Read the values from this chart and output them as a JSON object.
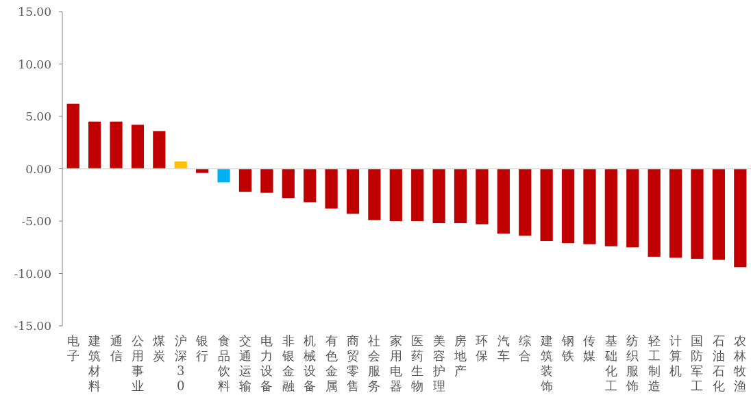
{
  "chart_data": {
    "type": "bar",
    "categories": [
      "电子",
      "建筑材料",
      "通信",
      "公用事业",
      "煤炭",
      "沪深300",
      "银行",
      "食品饮料",
      "交通运输",
      "电力设备",
      "非银金融",
      "机械设备",
      "有色金属",
      "商贸零售",
      "社会服务",
      "家用电器",
      "医药生物",
      "美容护理",
      "房地产",
      "环保",
      "汽车",
      "综合",
      "建筑装饰",
      "钢铁",
      "传媒",
      "基础化工",
      "纺织服饰",
      "轻工制造",
      "计算机",
      "国防军工",
      "石油石化",
      "农林牧渔"
    ],
    "values": [
      6.2,
      4.5,
      4.5,
      4.2,
      3.6,
      0.7,
      -0.4,
      -1.3,
      -2.2,
      -2.3,
      -2.8,
      -3.2,
      -3.8,
      -4.3,
      -4.9,
      -5.0,
      -5.0,
      -5.2,
      -5.2,
      -5.3,
      -6.2,
      -6.4,
      -6.9,
      -7.1,
      -7.2,
      -7.4,
      -7.5,
      -8.4,
      -8.5,
      -8.6,
      -8.7,
      -9.4
    ],
    "colors": [
      "#c00000",
      "#c00000",
      "#c00000",
      "#c00000",
      "#c00000",
      "#ffc000",
      "#c00000",
      "#00b0f0",
      "#c00000",
      "#c00000",
      "#c00000",
      "#c00000",
      "#c00000",
      "#c00000",
      "#c00000",
      "#c00000",
      "#c00000",
      "#c00000",
      "#c00000",
      "#c00000",
      "#c00000",
      "#c00000",
      "#c00000",
      "#c00000",
      "#c00000",
      "#c00000",
      "#c00000",
      "#c00000",
      "#c00000",
      "#c00000",
      "#c00000",
      "#c00000"
    ],
    "ylim": [
      -15,
      15
    ],
    "yticks": [
      {
        "value": -15,
        "label": "-15.00"
      },
      {
        "value": -10,
        "label": "-10.00"
      },
      {
        "value": -5,
        "label": "-5.00"
      },
      {
        "value": 0,
        "label": "0.00"
      },
      {
        "value": 5,
        "label": "5.00"
      },
      {
        "value": 10,
        "label": "10.00"
      },
      {
        "value": 15,
        "label": "15.00"
      }
    ]
  }
}
